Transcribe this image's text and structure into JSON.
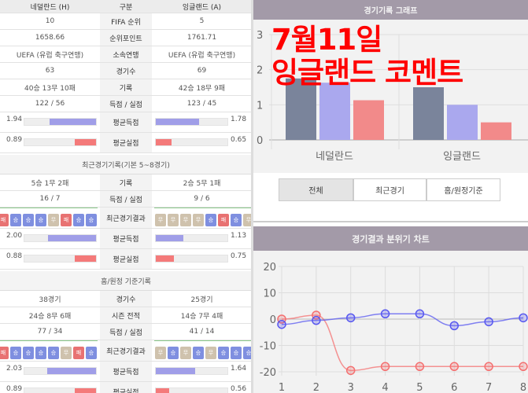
{
  "table": {
    "header": {
      "home": "네덜란드 (H)",
      "label": "구분",
      "away": "잉글랜드 (A)"
    },
    "overall": [
      {
        "home": "10",
        "label": "FIFA 순위",
        "away": "5"
      },
      {
        "home": "1658.66",
        "label": "순위포인트",
        "away": "1761.71"
      },
      {
        "home": "UEFA (유럽 축구연맹)",
        "label": "소속연맹",
        "away": "UEFA (유럽 축구연맹)"
      },
      {
        "home": "63",
        "label": "경기수",
        "away": "69"
      },
      {
        "home": "40승 13무 10패",
        "label": "기록",
        "away": "42승 18무 9패"
      },
      {
        "home": "122 / 56",
        "label": "득점 / 실점",
        "away": "123 / 45"
      }
    ],
    "overall_avg": [
      {
        "label": "평균득점",
        "home": "1.94",
        "away": "1.78",
        "home_pct": 65,
        "away_pct": 60,
        "color": "#a09ee8"
      },
      {
        "label": "평균실점",
        "home": "0.89",
        "away": "0.65",
        "home_pct": 30,
        "away_pct": 22,
        "color": "#f47a7a"
      }
    ],
    "recent_title": "최근경기기록(기본 5~8경기)",
    "recent": [
      {
        "home": "5승 1무 2패",
        "label": "기록",
        "away": "2승 5무 1패"
      },
      {
        "home": "16 / 7",
        "label": "득점 / 실점",
        "away": "9 / 6"
      }
    ],
    "recent_results": {
      "label": "최근경기결과",
      "home": [
        "패",
        "승",
        "승",
        "승",
        "무",
        "패",
        "승",
        "승"
      ],
      "away": [
        "무",
        "무",
        "무",
        "무",
        "승",
        "패",
        "승",
        "무"
      ]
    },
    "recent_avg": [
      {
        "label": "평균득점",
        "home": "2.00",
        "away": "1.13",
        "home_pct": 67,
        "away_pct": 38,
        "color": "#a09ee8"
      },
      {
        "label": "평균실점",
        "home": "0.88",
        "away": "0.75",
        "home_pct": 30,
        "away_pct": 25,
        "color": "#f47a7a"
      }
    ],
    "home_away_title": "홈/원정 기준기록",
    "home_away": [
      {
        "home": "38경기",
        "label": "경기수",
        "away": "25경기"
      },
      {
        "home": "24승 8무 6패",
        "label": "시즌 전적",
        "away": "14승 7무 4패"
      },
      {
        "home": "77 / 34",
        "label": "득점 / 실점",
        "away": "41 / 14"
      }
    ],
    "home_away_results": {
      "label": "최근경기결과",
      "home": [
        "패",
        "승",
        "승",
        "승",
        "승",
        "무",
        "패",
        "승"
      ],
      "away": [
        "무",
        "승",
        "무",
        "승",
        "무",
        "승",
        "승",
        "승"
      ]
    },
    "home_away_avg": [
      {
        "label": "평균득점",
        "home": "2.03",
        "away": "1.64",
        "home_pct": 68,
        "away_pct": 55,
        "color": "#a09ee8"
      },
      {
        "label": "평균실점",
        "home": "0.89",
        "away": "0.56",
        "home_pct": 30,
        "away_pct": 19,
        "color": "#f47a7a"
      }
    ]
  },
  "result_colors": {
    "승": "#7f8fe0",
    "무": "#cfc2ad",
    "패": "#e87272"
  },
  "bar_panel": {
    "title": "경기기록 그래프",
    "tabs": [
      "전체",
      "최근경기",
      "홈/원정기준"
    ],
    "active_tab": 0
  },
  "line_panel": {
    "title": "경기결과 분위기 차트"
  },
  "overlay_text": "7월11일 잉글랜드 코멘트",
  "chart_data": [
    {
      "type": "bar",
      "categories": [
        "네덜란드",
        "잉글랜드"
      ],
      "series": [
        {
          "values": [
            1.75,
            1.5
          ],
          "color": "#7a849b"
        },
        {
          "values": [
            1.63,
            1.0
          ],
          "color": "#aaa8ee"
        },
        {
          "values": [
            1.13,
            0.5
          ],
          "color": "#f28a8a"
        }
      ],
      "ylim": [
        0,
        3
      ],
      "yticks": [
        0,
        1,
        2,
        3
      ],
      "grid": true
    },
    {
      "type": "line",
      "x": [
        1,
        2,
        3,
        4,
        5,
        6,
        7,
        8
      ],
      "series": [
        {
          "values": [
            0,
            1.5,
            -19.5,
            -18,
            -18,
            -18,
            -18,
            -18
          ],
          "color": "#f47070"
        },
        {
          "values": [
            -2,
            -0.5,
            0.5,
            2,
            2,
            -2.5,
            -1,
            0.5
          ],
          "color": "#5858f0"
        }
      ],
      "ylim": [
        -20,
        20
      ],
      "yticks": [
        -20,
        -10,
        0,
        10,
        20
      ],
      "grid": true
    }
  ]
}
